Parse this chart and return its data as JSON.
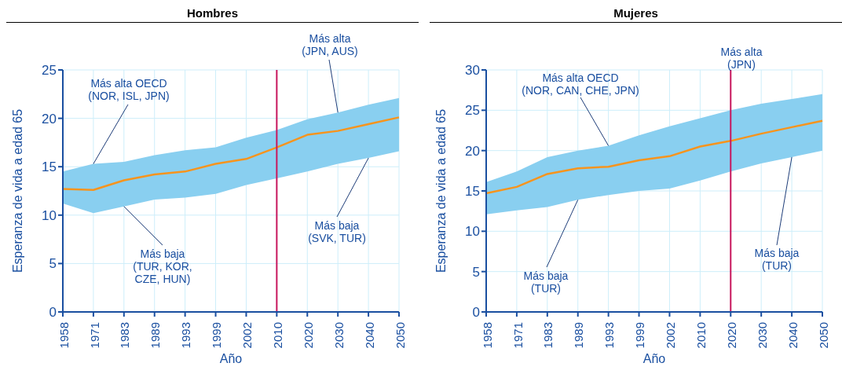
{
  "chart_data": [
    {
      "type": "line",
      "title": "Hombres",
      "xlabel": "Año",
      "ylabel": "Esperanza de vida a edad 65",
      "categories": [
        "1958",
        "1971",
        "1983",
        "1989",
        "1993",
        "1999",
        "2002",
        "2010",
        "2020",
        "2030",
        "2040",
        "2050"
      ],
      "series": [
        {
          "color": "#f7941d",
          "values": [
            12.7,
            12.6,
            13.6,
            14.2,
            14.5,
            15.3,
            15.8,
            17.0,
            18.3,
            18.7,
            19.4,
            20.1
          ],
          "lower": [
            11.2,
            10.2,
            10.9,
            11.6,
            11.8,
            12.2,
            13.1,
            13.8,
            14.5,
            15.3,
            15.9,
            16.6
          ],
          "upper": [
            14.5,
            15.3,
            15.5,
            16.2,
            16.7,
            17.0,
            18.0,
            18.8,
            19.9,
            20.6,
            21.4,
            22.1
          ]
        }
      ],
      "ylim": [
        0,
        25
      ],
      "yticks": [
        0,
        5,
        10,
        15,
        20,
        25
      ],
      "grid": true,
      "ref_lines": [
        {
          "axis": "x",
          "value": "2010",
          "color": "#c8175d"
        }
      ],
      "annotations": [
        {
          "text": "Más alta OECD\n(NOR, ISL, JPN)",
          "x": "1971",
          "y": 15.3
        },
        {
          "text": "Más alta\n(JPN, AUS)",
          "x": "2030",
          "y": 20.6
        },
        {
          "text": "Más baja\n(TUR, KOR,\nCZE, HUN)",
          "x": "1983",
          "y": 10.9
        },
        {
          "text": "Más baja\n(SVK, TUR)",
          "x": "2040",
          "y": 15.9
        }
      ]
    },
    {
      "type": "line",
      "title": "Mujeres",
      "xlabel": "Año",
      "ylabel": "Esperanza de vida a edad 65",
      "categories": [
        "1958",
        "1971",
        "1983",
        "1989",
        "1993",
        "1999",
        "2002",
        "2010",
        "2020",
        "2030",
        "2040",
        "2050"
      ],
      "series": [
        {
          "color": "#f7941d",
          "values": [
            14.7,
            15.5,
            17.1,
            17.8,
            18.0,
            18.8,
            19.3,
            20.5,
            21.2,
            22.1,
            22.9,
            23.7
          ],
          "lower": [
            12.1,
            12.6,
            13.0,
            13.9,
            14.5,
            15.0,
            15.3,
            16.3,
            17.4,
            18.4,
            19.2,
            20.0
          ],
          "upper": [
            16.1,
            17.4,
            19.2,
            20.0,
            20.6,
            21.9,
            23.0,
            24.0,
            25.0,
            25.8,
            26.4,
            27.0
          ]
        }
      ],
      "ylim": [
        0,
        30
      ],
      "yticks": [
        0,
        5,
        10,
        15,
        20,
        25,
        30
      ],
      "grid": true,
      "ref_lines": [
        {
          "axis": "x",
          "value": "2020",
          "color": "#c8175d"
        }
      ],
      "annotations": [
        {
          "text": "Más alta OECD\n(NOR, CAN, CHE, JPN)",
          "x": "1993",
          "y": 20.6
        },
        "Más alta\n(JPN)",
        {
          "text": "Más baja\n(TUR)",
          "x": "1989",
          "y": 13.9
        },
        {
          "text": "Más baja\n(TUR)",
          "x": "2040",
          "y": 19.2
        }
      ]
    }
  ]
}
